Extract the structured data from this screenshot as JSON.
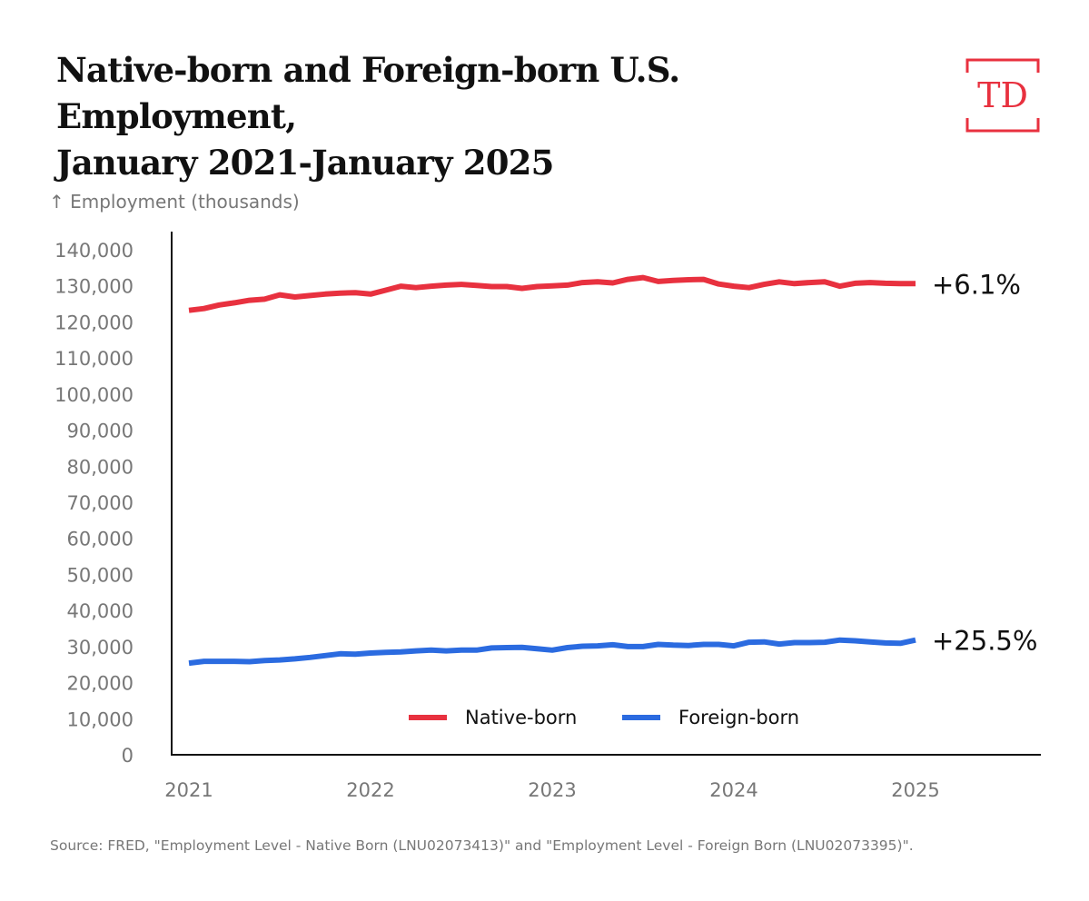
{
  "header": {
    "title_line1": "Native-born and Foreign-born U.S. Employment,",
    "title_line2": "January 2021-January 2025",
    "logo_text": "TD"
  },
  "colors": {
    "native": "#E8313F",
    "foreign": "#2B6BE0",
    "axis": "#111111",
    "tick_text": "#777777",
    "brand": "#E8313F"
  },
  "chart_data": {
    "type": "line",
    "ylabel": "↑ Employment (thousands)",
    "ylim": [
      0,
      140000
    ],
    "yticks": [
      0,
      10000,
      20000,
      30000,
      40000,
      50000,
      60000,
      70000,
      80000,
      90000,
      100000,
      110000,
      120000,
      130000,
      140000
    ],
    "ytick_labels": [
      "0",
      "10,000",
      "20,000",
      "30,000",
      "40,000",
      "50,000",
      "60,000",
      "70,000",
      "80,000",
      "90,000",
      "100,000",
      "110,000",
      "120,000",
      "130,000",
      "140,000"
    ],
    "xlim": [
      "2020-12",
      "2025-09"
    ],
    "xticks": [
      "2021-01",
      "2022-01",
      "2023-01",
      "2024-01",
      "2025-01"
    ],
    "xtick_labels": [
      "2021",
      "2022",
      "2023",
      "2024",
      "2025"
    ],
    "x": [
      "2021-01",
      "2021-02",
      "2021-03",
      "2021-04",
      "2021-05",
      "2021-06",
      "2021-07",
      "2021-08",
      "2021-09",
      "2021-10",
      "2021-11",
      "2021-12",
      "2022-01",
      "2022-02",
      "2022-03",
      "2022-04",
      "2022-05",
      "2022-06",
      "2022-07",
      "2022-08",
      "2022-09",
      "2022-10",
      "2022-11",
      "2022-12",
      "2023-01",
      "2023-02",
      "2023-03",
      "2023-04",
      "2023-05",
      "2023-06",
      "2023-07",
      "2023-08",
      "2023-09",
      "2023-10",
      "2023-11",
      "2023-12",
      "2024-01",
      "2024-02",
      "2024-03",
      "2024-04",
      "2024-05",
      "2024-06",
      "2024-07",
      "2024-08",
      "2024-09",
      "2024-10",
      "2024-11",
      "2024-12",
      "2025-01"
    ],
    "series": [
      {
        "name": "Native-born",
        "end_label": "+6.1%",
        "values": [
          123200,
          123700,
          124700,
          125300,
          126000,
          126300,
          127500,
          126900,
          127300,
          127700,
          128000,
          128100,
          127700,
          128800,
          129900,
          129500,
          129900,
          130200,
          130400,
          130100,
          129800,
          129800,
          129300,
          129800,
          130000,
          130200,
          130900,
          131100,
          130800,
          131800,
          132300,
          131200,
          131500,
          131700,
          131800,
          130500,
          129900,
          129500,
          130400,
          131100,
          130600,
          130900,
          131100,
          129900,
          130700,
          130900,
          130700,
          130600,
          130600
        ]
      },
      {
        "name": "Foreign-born",
        "end_label": "+25.5%",
        "values": [
          25400,
          25900,
          25900,
          25900,
          25800,
          26100,
          26300,
          26600,
          27000,
          27500,
          28000,
          27900,
          28200,
          28400,
          28500,
          28800,
          29000,
          28800,
          29000,
          29000,
          29600,
          29700,
          29800,
          29400,
          29000,
          29700,
          30100,
          30200,
          30500,
          30000,
          30000,
          30600,
          30400,
          30300,
          30600,
          30600,
          30200,
          31200,
          31300,
          30700,
          31100,
          31100,
          31200,
          31800,
          31600,
          31300,
          31000,
          30900,
          31800
        ]
      }
    ],
    "legend": "bottom-center",
    "grid": false
  },
  "footer": {
    "source": "Source: FRED, \"Employment Level - Native Born (LNU02073413)\" and \"Employment Level - Foreign Born (LNU02073395)\"."
  }
}
